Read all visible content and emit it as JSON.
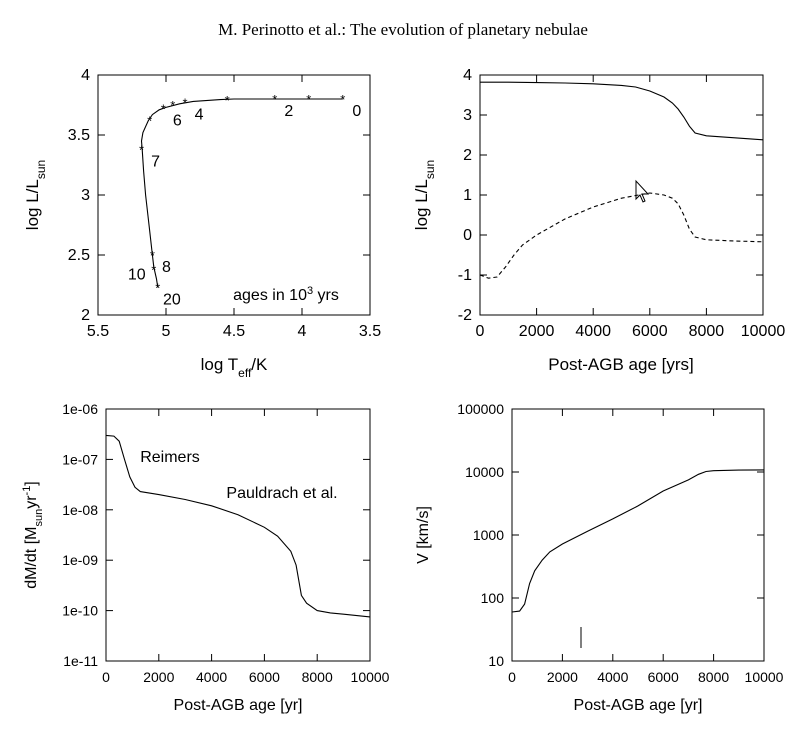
{
  "header": {
    "running_title": "M. Perinotto et al.: The evolution of planetary nebulae"
  },
  "chart_data": [
    {
      "type": "line",
      "xlabel": "log T",
      "xlabel_sub": "eff",
      "xlabel_suffix": "/K",
      "ylabel": "log L/L",
      "ylabel_sub": "sun",
      "xlim": [
        5.5,
        3.5
      ],
      "ylim": [
        2,
        4
      ],
      "xticks": [
        5.5,
        5,
        4.5,
        4,
        3.5
      ],
      "xtick_labels": [
        "5.5",
        "5",
        "4.5",
        "4",
        "3.5"
      ],
      "yticks": [
        2,
        2.5,
        3,
        3.5,
        4
      ],
      "ytick_labels": [
        "2",
        "2.5",
        "3",
        "3.5",
        "4"
      ],
      "annotation": {
        "text": "ages in 10",
        "sup": "3",
        "suffix": " yrs"
      },
      "series": [
        {
          "style": "solid",
          "x": [
            3.7,
            3.9,
            4.2,
            4.5,
            4.6,
            4.8,
            4.9,
            5.0,
            5.05,
            5.1,
            5.13,
            5.17,
            5.18,
            5.175,
            5.165,
            5.15,
            5.12,
            5.1,
            5.09,
            5.07,
            5.06
          ],
          "y": [
            3.8,
            3.8,
            3.8,
            3.8,
            3.795,
            3.78,
            3.76,
            3.73,
            3.71,
            3.67,
            3.62,
            3.52,
            3.45,
            3.38,
            3.2,
            3.0,
            2.7,
            2.5,
            2.4,
            2.3,
            2.23
          ]
        }
      ],
      "markers": [
        {
          "label": "0",
          "x": 3.7,
          "y": 3.8
        },
        {
          "label": "",
          "x": 3.95,
          "y": 3.8
        },
        {
          "label": "2",
          "x": 4.2,
          "y": 3.8
        },
        {
          "label": "",
          "x": 4.55,
          "y": 3.79
        },
        {
          "label": "4",
          "x": 4.86,
          "y": 3.77
        },
        {
          "label": "",
          "x": 4.95,
          "y": 3.75
        },
        {
          "label": "6",
          "x": 5.02,
          "y": 3.72
        },
        {
          "label": "",
          "x": 5.12,
          "y": 3.62
        },
        {
          "label": "7",
          "x": 5.18,
          "y": 3.38
        },
        {
          "label": "8",
          "x": 5.1,
          "y": 2.5
        },
        {
          "label": "10",
          "x": 5.09,
          "y": 2.38
        },
        {
          "label": "20",
          "x": 5.06,
          "y": 2.23
        }
      ]
    },
    {
      "type": "line",
      "xlabel": "Post-AGB age [yrs]",
      "ylabel": "log L/L",
      "ylabel_sub": "sun",
      "xlim": [
        0,
        10000
      ],
      "ylim": [
        -2,
        4
      ],
      "xticks": [
        0,
        2000,
        4000,
        6000,
        8000,
        10000
      ],
      "xtick_labels": [
        "0",
        "2000",
        "4000",
        "6000",
        "8000",
        "10000"
      ],
      "yticks": [
        -2,
        -1,
        0,
        1,
        2,
        3,
        4
      ],
      "ytick_labels": [
        "-2",
        "-1",
        "0",
        "1",
        "2",
        "3",
        "4"
      ],
      "series": [
        {
          "style": "solid",
          "x": [
            0,
            1000,
            2000,
            3000,
            4000,
            5000,
            5500,
            6000,
            6500,
            6800,
            7000,
            7200,
            7400,
            7600,
            8000,
            9000,
            10000
          ],
          "y": [
            3.82,
            3.82,
            3.81,
            3.8,
            3.78,
            3.74,
            3.7,
            3.6,
            3.45,
            3.3,
            3.15,
            2.95,
            2.72,
            2.55,
            2.48,
            2.43,
            2.38
          ]
        },
        {
          "style": "dashed",
          "x": [
            0,
            300,
            600,
            900,
            1200,
            1500,
            2000,
            3000,
            4000,
            5000,
            5600,
            6000,
            6500,
            6800,
            7000,
            7200,
            7400,
            7600,
            8000,
            9000,
            10000
          ],
          "y": [
            -1.0,
            -1.08,
            -1.05,
            -0.8,
            -0.5,
            -0.25,
            0.0,
            0.4,
            0.7,
            0.92,
            1.0,
            1.05,
            1.0,
            0.92,
            0.78,
            0.5,
            0.15,
            -0.05,
            -0.12,
            -0.15,
            -0.17
          ]
        }
      ]
    },
    {
      "type": "line",
      "xlabel": "Post-AGB age [yr]",
      "ylabel": "dM/dt [M",
      "ylabel_sub": "sun",
      "ylabel_mid": "yr",
      "ylabel_sup": "-1",
      "ylabel_end": "]",
      "yscale": "log",
      "xlim": [
        0,
        10000
      ],
      "ylim": [
        1e-11,
        1e-06
      ],
      "xticks": [
        0,
        2000,
        4000,
        6000,
        8000,
        10000
      ],
      "xtick_labels": [
        "0",
        "2000",
        "4000",
        "6000",
        "8000",
        "10000"
      ],
      "yticks": [
        1e-11,
        1e-10,
        1e-09,
        1e-08,
        1e-07,
        1e-06
      ],
      "ytick_labels": [
        "1e-11",
        "1e-10",
        "1e-09",
        "1e-08",
        "1e-07",
        "1e-06"
      ],
      "annotations": [
        "Reimers",
        "Pauldrach et al."
      ],
      "series": [
        {
          "style": "solid",
          "x": [
            0,
            300,
            500,
            700,
            900,
            1100,
            1300,
            2000,
            3000,
            4000,
            5000,
            6000,
            6500,
            7000,
            7200,
            7400,
            7600,
            8000,
            8500,
            9000,
            10000
          ],
          "y": [
            3e-07,
            2.9e-07,
            2.3e-07,
            1e-07,
            4.5e-08,
            2.8e-08,
            2.3e-08,
            2e-08,
            1.6e-08,
            1.2e-08,
            8e-09,
            4.5e-09,
            3e-09,
            1.5e-09,
            8e-10,
            2e-10,
            1.4e-10,
            1e-10,
            9e-11,
            8.5e-11,
            7.5e-11
          ]
        }
      ]
    },
    {
      "type": "line",
      "xlabel": "Post-AGB age [yr]",
      "ylabel": "V [km/s]",
      "yscale": "log",
      "xlim": [
        0,
        10000
      ],
      "ylim": [
        10,
        100000
      ],
      "xticks": [
        0,
        2000,
        4000,
        6000,
        8000,
        10000
      ],
      "xtick_labels": [
        "0",
        "2000",
        "4000",
        "6000",
        "8000",
        "10000"
      ],
      "yticks": [
        10,
        100,
        1000,
        10000,
        100000
      ],
      "ytick_labels": [
        "10",
        "100",
        "1000",
        "10000",
        "100000"
      ],
      "series": [
        {
          "style": "solid",
          "x": [
            0,
            300,
            500,
            700,
            900,
            1200,
            1500,
            2000,
            3000,
            4000,
            5000,
            6000,
            7000,
            7400,
            7700,
            8000,
            9000,
            10000
          ],
          "y": [
            60,
            62,
            80,
            170,
            270,
            400,
            540,
            720,
            1150,
            1800,
            2900,
            5000,
            7500,
            9200,
            10200,
            10500,
            10700,
            10800
          ]
        }
      ]
    }
  ]
}
